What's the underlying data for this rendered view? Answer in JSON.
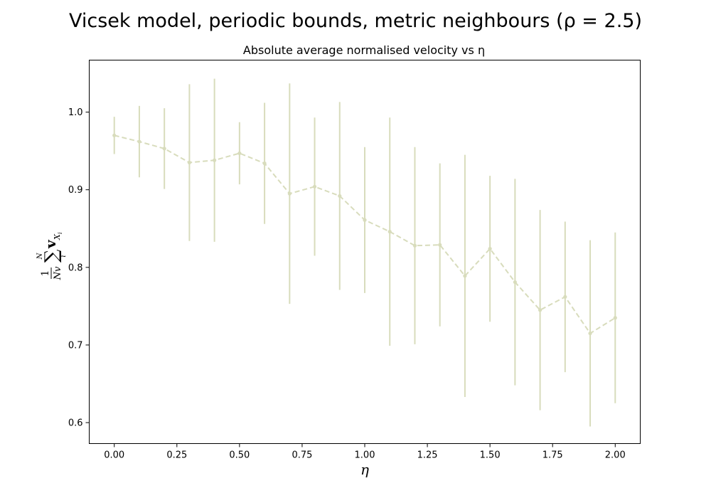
{
  "figure": {
    "suptitle": "Vicsek model, periodic bounds, metric neighbours (ρ = 2.5)"
  },
  "chart_data": {
    "type": "line",
    "title": "Absolute average normalised velocity vs η",
    "xlabel": "η",
    "ylabel": "(1/Nv) Σ_i^N v_{X_i}",
    "xlim": [
      -0.1,
      2.1
    ],
    "ylim": [
      0.573,
      1.067
    ],
    "xticks": [
      0.0,
      0.25,
      0.5,
      0.75,
      1.0,
      1.25,
      1.5,
      1.75,
      2.0
    ],
    "xtick_labels": [
      "0.00",
      "0.25",
      "0.50",
      "0.75",
      "1.00",
      "1.25",
      "1.50",
      "1.75",
      "2.00"
    ],
    "yticks": [
      0.6,
      0.7,
      0.8,
      0.9,
      1.0
    ],
    "ytick_labels": [
      "0.6",
      "0.7",
      "0.8",
      "0.9",
      "1.0"
    ],
    "grid": false,
    "legend": "none",
    "color": "#d8dcbc",
    "linestyle": "dashed",
    "marker": "circle",
    "x": [
      0.0,
      0.1,
      0.2,
      0.3,
      0.4,
      0.5,
      0.6,
      0.7,
      0.8,
      0.9,
      1.0,
      1.1,
      1.2,
      1.3,
      1.4,
      1.5,
      1.6,
      1.7,
      1.8,
      1.9,
      2.0
    ],
    "y": [
      0.97,
      0.962,
      0.953,
      0.935,
      0.938,
      0.947,
      0.934,
      0.895,
      0.904,
      0.892,
      0.861,
      0.846,
      0.828,
      0.829,
      0.789,
      0.824,
      0.781,
      0.745,
      0.762,
      0.715,
      0.735
    ],
    "yerr": [
      0.024,
      0.046,
      0.052,
      0.101,
      0.105,
      0.04,
      0.078,
      0.142,
      0.089,
      0.121,
      0.094,
      0.147,
      0.127,
      0.105,
      0.156,
      0.094,
      0.133,
      0.129,
      0.097,
      0.12,
      0.11
    ]
  }
}
